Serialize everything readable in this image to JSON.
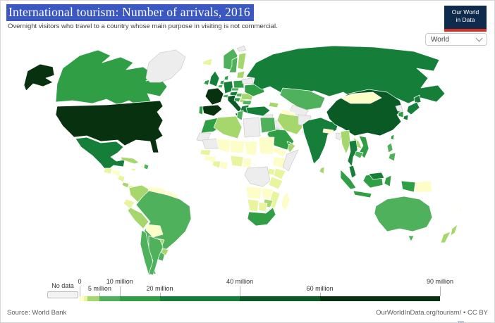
{
  "header": {
    "title": "International tourism: Number of arrivals, 2016",
    "subtitle": "Overnight visitors who travel to a country whose main purpose in visiting is not commercial."
  },
  "logo": {
    "line1": "Our World",
    "line2": "in Data"
  },
  "controls": {
    "entity_selector": "World"
  },
  "footer": {
    "source": "Source: World Bank",
    "credit": "OurWorldInData.org/tourism/ • CC BY"
  },
  "colors": {
    "title_highlight": "#3a57c2",
    "logo_bg": "#0e2a4d",
    "logo_stripe": "#d93025",
    "page_border": "#d8d8d8"
  },
  "chart_data": {
    "type": "heatmap",
    "variant": "world-choropleth",
    "title": "International tourism: Number of arrivals, 2016",
    "metric": "International tourist arrivals",
    "year": 2016,
    "legend": {
      "no_data": {
        "label": "No data",
        "color": "#ededed"
      },
      "scale_max": 90,
      "unit": "million arrivals",
      "ticks": [
        {
          "label": "0",
          "value": 0
        },
        {
          "label": "5 million",
          "value": 5
        },
        {
          "label": "10 million",
          "value": 10
        },
        {
          "label": "20 million",
          "value": 20
        },
        {
          "label": "40 million",
          "value": 40
        },
        {
          "label": "60 million",
          "value": 60
        },
        {
          "label": "90 million",
          "value": 90
        }
      ],
      "brackets": [
        {
          "key": "0-1M",
          "label": "0–1 million",
          "from": 0,
          "to": 1,
          "color": "#fdfdc7"
        },
        {
          "key": "1-2M",
          "label": "1–2 million",
          "from": 1,
          "to": 2,
          "color": "#e8f49e"
        },
        {
          "key": "2-5M",
          "label": "2–5 million",
          "from": 2,
          "to": 5,
          "color": "#a6d76c"
        },
        {
          "key": "5-10M",
          "label": "5–10 million",
          "from": 5,
          "to": 10,
          "color": "#4fb15c"
        },
        {
          "key": "10-20M",
          "label": "10–20 million",
          "from": 10,
          "to": 20,
          "color": "#2f9e44"
        },
        {
          "key": "20-40M",
          "label": "20–40 million",
          "from": 20,
          "to": 40,
          "color": "#157f39"
        },
        {
          "key": "40-60M",
          "label": "40–60 million",
          "from": 40,
          "to": 60,
          "color": "#0a5a26"
        },
        {
          "key": "60-90M",
          "label": "60–90 million",
          "from": 60,
          "to": 90,
          "color": "#07310f"
        }
      ]
    },
    "countries": {
      "usa": "60-90M",
      "canada": "10-20M",
      "greenland": "no-data",
      "mexico": "20-40M",
      "guatemala": "1-2M",
      "honduras": "0-1M",
      "nicaragua": "1-2M",
      "costa-rica": "2-5M",
      "panama": "1-2M",
      "cuba": "2-5M",
      "jamaica": "1-2M",
      "haiti": "0-1M",
      "dominican-republic": "5-10M",
      "colombia": "2-5M",
      "venezuela": "0-1M",
      "guyanas": "0-1M",
      "ecuador": "1-2M",
      "peru": "2-5M",
      "brazil": "5-10M",
      "bolivia": "0-1M",
      "paraguay": "2-5M",
      "chile": "5-10M",
      "argentina": "5-10M",
      "uruguay": "2-5M",
      "iceland": "1-2M",
      "norway": "5-10M",
      "sweden": "5-10M",
      "finland": "2-5M",
      "uk": "20-40M",
      "ireland": "10-20M",
      "denmark": "10-20M",
      "netherlands": "10-20M",
      "belgium": "5-10M",
      "germany": "20-40M",
      "france": "60-90M",
      "spain": "60-90M",
      "portugal": "10-20M",
      "switzerland": "5-10M",
      "italy": "40-60M",
      "austria": "20-40M",
      "czechia": "5-10M",
      "poland": "10-20M",
      "hungary": "5-10M",
      "croatia": "10-20M",
      "serbia": "2-5M",
      "greece": "20-40M",
      "bulgaria": "5-10M",
      "romania": "2-5M",
      "ukraine": "10-20M",
      "belarus": "no-data",
      "baltics": "2-5M",
      "svalbard": "no-data",
      "russia": "20-40M",
      "kazakhstan": "5-10M",
      "uzbekistan": "no-data",
      "turkmenistan": "0-1M",
      "caucasus": "2-5M",
      "turkey": "20-40M",
      "syria": "no-data",
      "iraq": "no-data",
      "israel-jordan": "2-5M",
      "iran": "2-5M",
      "afghanistan": "no-data",
      "pakistan": "no-data",
      "saudi-arabia": "10-20M",
      "yemen": "0-1M",
      "oman": "2-5M",
      "uae": "10-20M",
      "egypt": "5-10M",
      "libya": "no-data",
      "tunisia": "5-10M",
      "algeria": "2-5M",
      "morocco": "10-20M",
      "western-sahara": "no-data",
      "mauritania": "no-data",
      "mali": "0-1M",
      "niger": "0-1M",
      "chad": "0-1M",
      "sudan": "0-1M",
      "senegal": "1-2M",
      "guinea": "0-1M",
      "ivory-coast": "1-2M",
      "ghana": "0-1M",
      "nigeria": "1-2M",
      "cameroon": "0-1M",
      "ethiopia": "0-1M",
      "somalia": "no-data",
      "kenya": "1-2M",
      "uganda": "1-2M",
      "drc": "no-data",
      "tanzania": "1-2M",
      "angola": "0-1M",
      "zambia": "0-1M",
      "mozambique": "1-2M",
      "zimbabwe": "2-5M",
      "namibia": "1-2M",
      "botswana": "1-2M",
      "south-africa": "10-20M",
      "madagascar": "0-1M",
      "india": "20-40M",
      "nepal": "0-1M",
      "bangladesh": "no-data",
      "sri-lanka": "2-5M",
      "china": "40-60M",
      "mongolia": "0-1M",
      "north-korea": "no-data",
      "south-korea": "10-20M",
      "japan": "20-40M",
      "taiwan": "10-20M",
      "myanmar": "2-5M",
      "thailand": "20-40M",
      "laos": "2-5M",
      "vietnam": "10-20M",
      "cambodia": "5-10M",
      "malaysia": "20-40M",
      "indonesia": "10-20M",
      "papua-new-guinea": "0-1M",
      "philippines": "5-10M",
      "australia": "5-10M",
      "new-zealand": "2-5M",
      "fiji": "0-1M"
    }
  }
}
